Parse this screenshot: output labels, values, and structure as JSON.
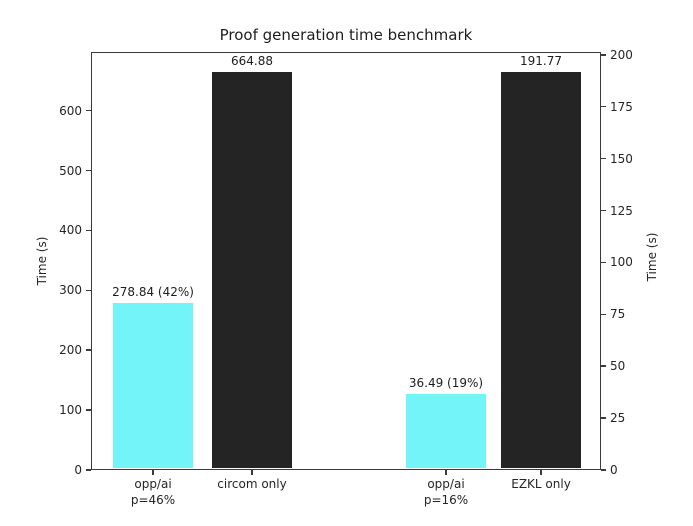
{
  "chart_data": {
    "type": "bar",
    "title": "Proof generation time benchmark",
    "left_axis": {
      "label": "Time (s)",
      "ylim": [
        0,
        698.12
      ],
      "ticks": [
        0,
        100,
        200,
        300,
        400,
        500,
        600
      ]
    },
    "right_axis": {
      "label": "Time (s)",
      "ylim": [
        0,
        201.36
      ],
      "ticks": [
        0,
        25,
        50,
        75,
        100,
        125,
        150,
        175,
        200
      ]
    },
    "bars": [
      {
        "category": "opp/ai\np=46%",
        "value": 278.84,
        "data_label": "278.84 (42%)",
        "axis": "left",
        "color": "cyan",
        "center_frac": 0.1216
      },
      {
        "category": "circom only",
        "value": 664.88,
        "data_label": "664.88",
        "axis": "left",
        "color": "black",
        "center_frac": 0.3157
      },
      {
        "category": "opp/ai\np=16%",
        "value": 36.49,
        "data_label": "36.49 (19%)",
        "axis": "right",
        "color": "cyan",
        "center_frac": 0.6961
      },
      {
        "category": "EZKL only",
        "value": 191.77,
        "data_label": "191.77",
        "axis": "right",
        "color": "black",
        "center_frac": 0.8824
      }
    ],
    "colors": {
      "cyan": "#73f4f9",
      "black": "#242424"
    },
    "layout": {
      "bar_width_frac": 0.155,
      "grid": false,
      "legend": false,
      "ticks_out": true
    }
  }
}
